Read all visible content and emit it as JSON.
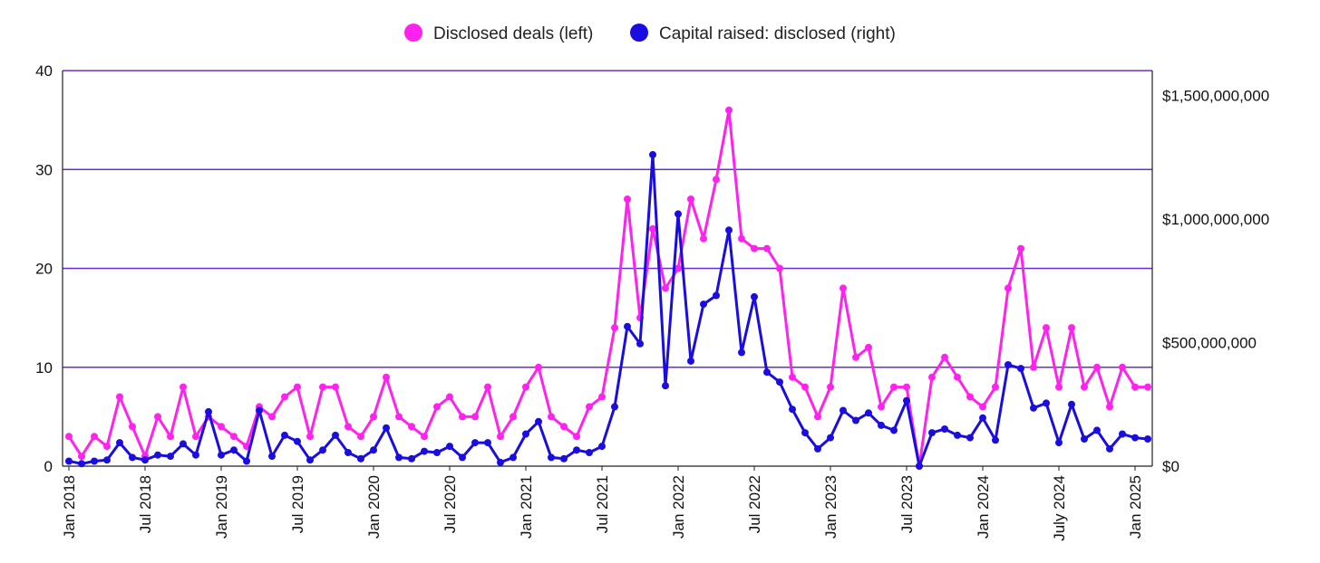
{
  "chart_data": {
    "type": "line",
    "title": "",
    "xlabel": "",
    "ylabel_left": "",
    "ylabel_right": "",
    "grid": true,
    "legend_position": "top-center",
    "colors": {
      "deals": "#ff22ee",
      "capital": "#1a0ddf",
      "grid": "#6b2bd6",
      "text": "#111111"
    },
    "left_axis": {
      "ylim": [
        0,
        40
      ],
      "ticks": [
        0,
        10,
        20,
        30,
        40
      ],
      "tick_labels": [
        "0",
        "10",
        "20",
        "30",
        "40"
      ]
    },
    "right_axis": {
      "ylim": [
        0,
        1600000000
      ],
      "ticks": [
        0,
        500000000,
        1000000000,
        1500000000
      ],
      "tick_labels": [
        "$0",
        "$500,000,000",
        "$1,000,000,000",
        "$1,500,000,000"
      ]
    },
    "x_tick_labels": [
      {
        "label": "Jan 2018",
        "index": 0
      },
      {
        "label": "Jul 2018",
        "index": 6
      },
      {
        "label": "Jan 2019",
        "index": 12
      },
      {
        "label": "Jul 2019",
        "index": 18
      },
      {
        "label": "Jan 2020",
        "index": 24
      },
      {
        "label": "Jul 2020",
        "index": 30
      },
      {
        "label": "Jan 2021",
        "index": 36
      },
      {
        "label": "Jul 2021",
        "index": 42
      },
      {
        "label": "Jan 2022",
        "index": 48
      },
      {
        "label": "Jul 2022",
        "index": 54
      },
      {
        "label": "Jan 2023",
        "index": 60
      },
      {
        "label": "Jul 2023",
        "index": 66
      },
      {
        "label": "Jan 2024",
        "index": 72
      },
      {
        "label": "July 2024",
        "index": 78
      },
      {
        "label": "Jan 2025",
        "index": 84
      }
    ],
    "series": [
      {
        "name": "Disclosed deals (left)",
        "axis": "left",
        "values": [
          3,
          1,
          3,
          2,
          7,
          4,
          1,
          5,
          3,
          8,
          3,
          5,
          4,
          3,
          2,
          6,
          5,
          7,
          8,
          3,
          8,
          8,
          4,
          3,
          5,
          9,
          5,
          4,
          3,
          6,
          7,
          5,
          5,
          8,
          3,
          5,
          8,
          10,
          5,
          4,
          3,
          6,
          7,
          14,
          27,
          15,
          24,
          18,
          20,
          27,
          23,
          29,
          36,
          23,
          22,
          22,
          20,
          9,
          8,
          5,
          8,
          18,
          11,
          12,
          6,
          8,
          8,
          0,
          9,
          11,
          9,
          7,
          6,
          8,
          18,
          22,
          10,
          14,
          8,
          14,
          8,
          10,
          6,
          10,
          8,
          8
        ]
      },
      {
        "name": "Capital raised: disclosed (right)",
        "axis": "right",
        "values": [
          20000000,
          10000000,
          20000000,
          25000000,
          95000000,
          35000000,
          25000000,
          45000000,
          40000000,
          90000000,
          45000000,
          220000000,
          45000000,
          65000000,
          20000000,
          225000000,
          40000000,
          125000000,
          100000000,
          25000000,
          65000000,
          125000000,
          55000000,
          30000000,
          65000000,
          155000000,
          35000000,
          30000000,
          60000000,
          55000000,
          80000000,
          35000000,
          95000000,
          95000000,
          15000000,
          35000000,
          130000000,
          180000000,
          35000000,
          30000000,
          65000000,
          55000000,
          80000000,
          240000000,
          565000000,
          495000000,
          1260000000,
          325000000,
          1020000000,
          425000000,
          655000000,
          690000000,
          955000000,
          460000000,
          685000000,
          380000000,
          340000000,
          230000000,
          135000000,
          70000000,
          115000000,
          225000000,
          185000000,
          215000000,
          165000000,
          145000000,
          265000000,
          0,
          135000000,
          150000000,
          125000000,
          115000000,
          195000000,
          105000000,
          410000000,
          395000000,
          235000000,
          255000000,
          95000000,
          250000000,
          110000000,
          145000000,
          70000000,
          130000000,
          115000000,
          110000000
        ]
      }
    ]
  }
}
